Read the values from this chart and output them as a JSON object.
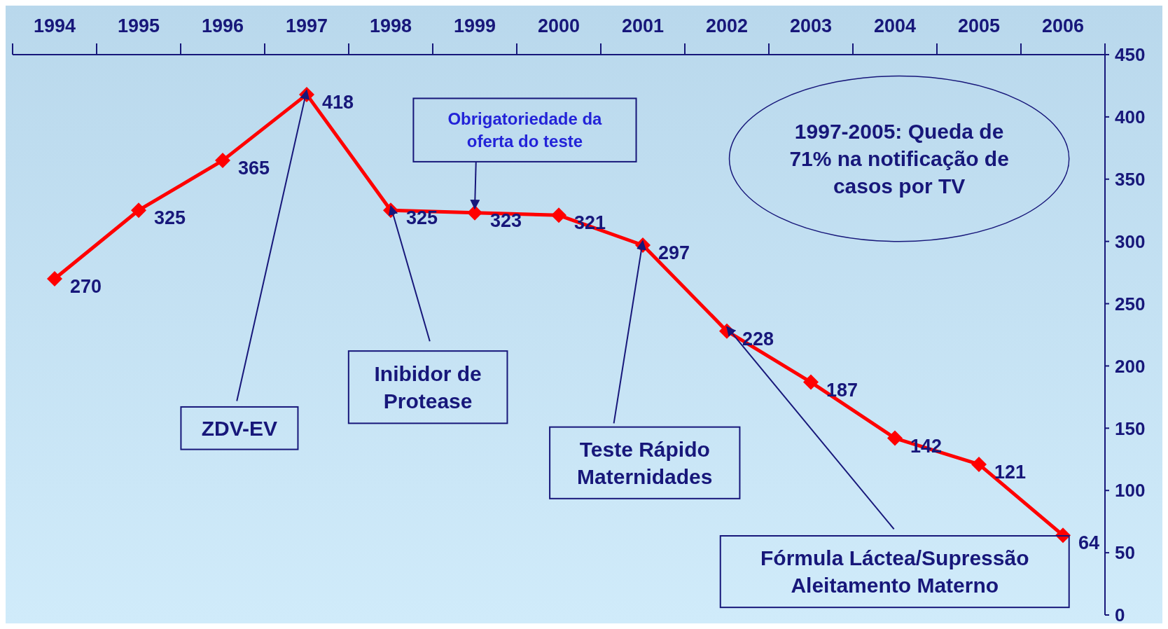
{
  "chart_data": {
    "type": "line",
    "categories": [
      "1994",
      "1995",
      "1996",
      "1997",
      "1998",
      "1999",
      "2000",
      "2001",
      "2002",
      "2003",
      "2004",
      "2005",
      "2006"
    ],
    "series": [
      {
        "color": "#ff0000",
        "values": [
          270,
          325,
          365,
          418,
          325,
          323,
          321,
          297,
          228,
          187,
          142,
          121,
          64
        ]
      }
    ],
    "ylim": [
      0,
      450
    ],
    "yticks": [
      0,
      50,
      100,
      150,
      200,
      250,
      300,
      350,
      400,
      450
    ],
    "marker": "diamond",
    "line_style": "solid",
    "data_labels": true,
    "annotations": [
      {
        "text": "ZDV-EV",
        "x": "1997",
        "y": 418
      },
      {
        "text": "Inibidor de Protease",
        "x": "1998",
        "y": 325
      },
      {
        "text": "Obrigatoriedade da oferta do teste",
        "x": "1999",
        "y": 323
      },
      {
        "text": "Teste Rápido Maternidades",
        "x": "2001",
        "y": 297
      },
      {
        "text": "Fórmula Láctea/Supressão Aleitamento Materno",
        "x": "2002",
        "y": 228
      },
      "1997-2005: Queda de 71% na notificação de casos por TV"
    ]
  }
}
